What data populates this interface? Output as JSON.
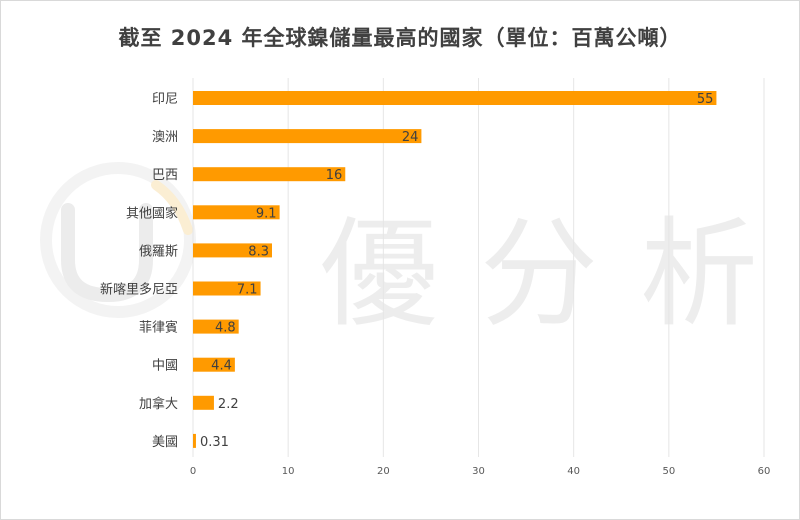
{
  "page": {
    "title": "截至 2024 年全球鎳儲量最高的國家（單位：百萬公噸）",
    "watermark_text": "優分析"
  },
  "colors": {
    "bar": "#FF9A00",
    "grid": "#e6e6e6",
    "text": "#404040",
    "watermark": "#ededed"
  },
  "chart_data": {
    "type": "bar",
    "orientation": "horizontal",
    "title": "截至 2024 年全球鎳儲量最高的國家（單位：百萬公噸）",
    "xlabel": "",
    "ylabel": "",
    "categories": [
      "印尼",
      "澳洲",
      "巴西",
      "其他國家",
      "俄羅斯",
      "新喀里多尼亞",
      "菲律賓",
      "中國",
      "加拿大",
      "美國"
    ],
    "values": [
      55,
      24,
      16,
      9.1,
      8.3,
      7.1,
      4.8,
      4.4,
      2.2,
      0.31
    ],
    "value_labels": [
      "55",
      "24",
      "16",
      "9.1",
      "8.3",
      "7.1",
      "4.8",
      "4.4",
      "2.2",
      "0.31"
    ],
    "xlim": [
      0,
      60
    ],
    "xticks": [
      0,
      10,
      20,
      30,
      40,
      50,
      60
    ],
    "grid": true,
    "legend": "none"
  }
}
